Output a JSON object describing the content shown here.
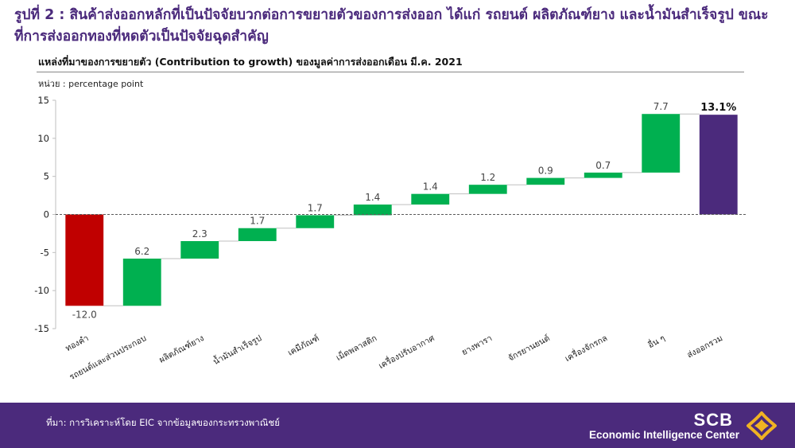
{
  "header": {
    "title": "รูปที่ 2 : สินค้าส่งออกหลักที่เป็นปัจจัยบวกต่อการขยายตัวของการส่งออก ได้แก่ รถยนต์ ผลิตภัณฑ์ยาง และน้ำมันสำเร็จรูป ขณะที่การส่งออกทองที่หดตัวเป็นปัจจัยฉุดสำคัญ",
    "subtitle": "แหล่งที่มาของการขยายตัว (Contribution to growth) ของมูลค่าการส่งออกเดือน มี.ค. 2021",
    "unit": "หน่วย : percentage  point"
  },
  "chart_data": {
    "type": "bar",
    "subtype": "waterfall",
    "categories": [
      "ทองคำ",
      "รถยนต์และส่วนประกอบ",
      "ผลิตภัณฑ์ยาง",
      "น้ำมันสำเร็จรูป",
      "เคมีภัณฑ์",
      "เม็ดพลาสติก",
      "เครื่องปรับอากาศ",
      "ยางพารา",
      "จักรยานยนต์",
      "เครื่องจักรกล",
      "อื่น ๆ",
      "ส่งออกรวม"
    ],
    "values": [
      -12.0,
      6.2,
      2.3,
      1.7,
      1.7,
      1.4,
      1.4,
      1.2,
      0.9,
      0.7,
      7.7,
      13.1
    ],
    "labels": [
      "-12.0",
      "6.2",
      "2.3",
      "1.7",
      "1.7",
      "1.4",
      "1.4",
      "1.2",
      "0.9",
      "0.7",
      "7.7",
      "13.1%"
    ],
    "ylim": [
      -15,
      15
    ],
    "yticks": [
      -15,
      -10,
      -5,
      0,
      5,
      10,
      15
    ],
    "colors": {
      "negative": "#c00000",
      "positive": "#00b050",
      "total": "#4b2a7c",
      "zero_line": "#595959",
      "connector": "#bfbfbf"
    },
    "legend": "none",
    "grid": false
  },
  "footer": {
    "source": "ที่มา: การวิเคราะห์โดย EIC จากข้อมูลของกระทรวงพาณิชย์",
    "brand": "SCB",
    "brand_sub": "Economic Intelligence Center"
  }
}
